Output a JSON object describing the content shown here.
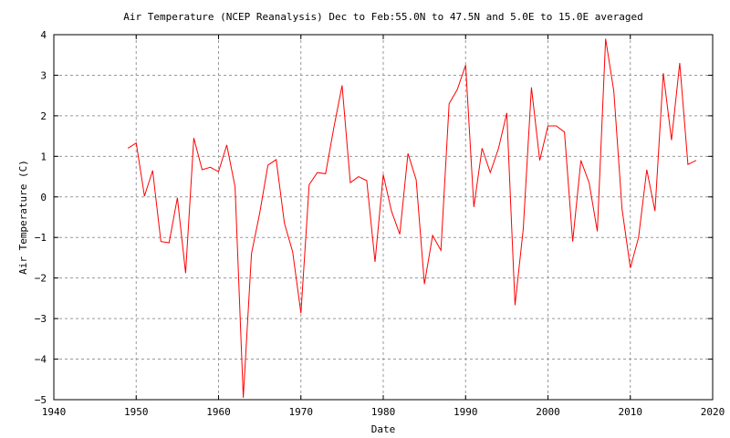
{
  "chart_data": {
    "type": "line",
    "title": "Air Temperature (NCEP Reanalysis) Dec to Feb:55.0N to 47.5N and 5.0E to 15.0E averaged",
    "xlabel": "Date",
    "ylabel": "Air Temperature (C)",
    "xlim": [
      1940,
      2020
    ],
    "ylim": [
      -5,
      4
    ],
    "xticks": [
      "1940",
      "1950",
      "1960",
      "1970",
      "1980",
      "1990",
      "2000",
      "2010",
      "2020"
    ],
    "yticks": [
      "4",
      "3",
      "2",
      "1",
      "0",
      "−1",
      "−2",
      "−3",
      "−4",
      "−5"
    ],
    "grid": true,
    "series": [
      {
        "name": "Air Temperature",
        "color": "#ff0000",
        "x": [
          1949,
          1950,
          1951,
          1952,
          1953,
          1954,
          1955,
          1956,
          1957,
          1958,
          1959,
          1960,
          1961,
          1962,
          1963,
          1964,
          1965,
          1966,
          1967,
          1968,
          1969,
          1970,
          1971,
          1972,
          1973,
          1974,
          1975,
          1976,
          1977,
          1978,
          1979,
          1980,
          1981,
          1982,
          1983,
          1984,
          1985,
          1986,
          1987,
          1988,
          1989,
          1990,
          1991,
          1992,
          1993,
          1994,
          1995,
          1996,
          1997,
          1998,
          1999,
          2000,
          2001,
          2002,
          2003,
          2004,
          2005,
          2006,
          2007,
          2008,
          2009,
          2010,
          2011,
          2012,
          2013,
          2014,
          2015,
          2016,
          2017,
          2018
        ],
        "values": [
          1.2,
          1.33,
          0.02,
          0.65,
          -1.1,
          -1.13,
          -0.02,
          -1.88,
          1.45,
          0.67,
          0.73,
          0.62,
          1.28,
          0.25,
          -4.95,
          -1.4,
          -0.4,
          0.78,
          0.92,
          -0.65,
          -1.35,
          -2.87,
          0.3,
          0.6,
          0.57,
          1.7,
          2.75,
          0.35,
          0.5,
          0.4,
          -1.6,
          0.55,
          -0.35,
          -0.92,
          1.07,
          0.42,
          -2.15,
          -0.95,
          -1.32,
          2.3,
          2.65,
          3.25,
          -0.25,
          1.2,
          0.6,
          1.2,
          2.07,
          -2.67,
          -0.8,
          2.7,
          0.9,
          1.75,
          1.75,
          1.6,
          -1.1,
          0.9,
          0.35,
          -0.85,
          3.9,
          2.6,
          -0.3,
          -1.75,
          -1.0,
          0.67,
          -0.35,
          3.05,
          1.4,
          3.3,
          0.8,
          0.9
        ]
      }
    ]
  }
}
